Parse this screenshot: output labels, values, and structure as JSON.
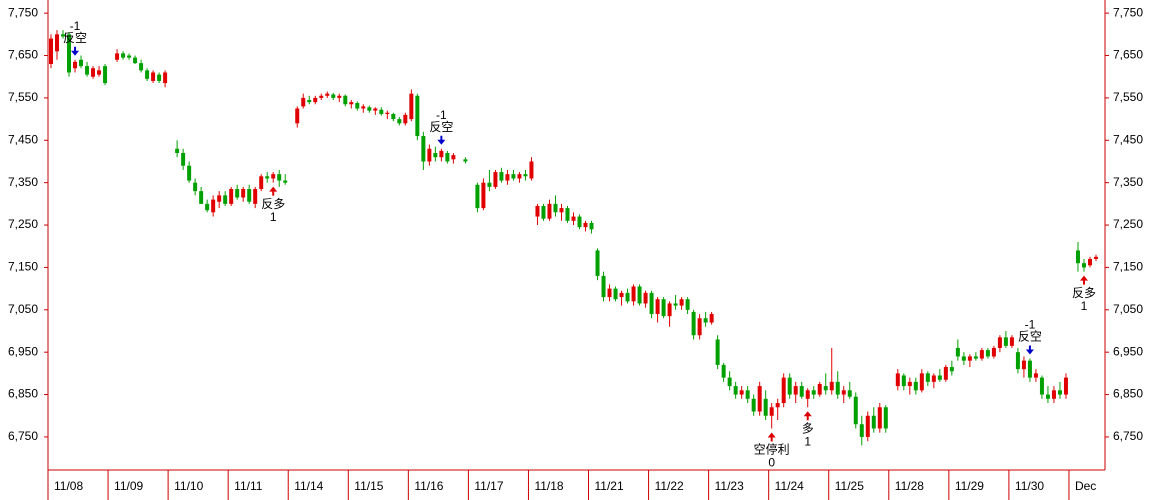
{
  "chart_data": {
    "type": "candlestick",
    "up_color": "#e00000",
    "down_color": "#00a000",
    "axis_color": "#cc0000",
    "xlim": [
      0,
      176
    ],
    "xticks": [
      {
        "value": 0,
        "label": "11/08"
      },
      {
        "value": 10,
        "label": "11/09"
      },
      {
        "value": 20,
        "label": "11/10"
      },
      {
        "value": 30,
        "label": "11/11"
      },
      {
        "value": 40,
        "label": "11/14"
      },
      {
        "value": 50,
        "label": "11/15"
      },
      {
        "value": 60,
        "label": "11/16"
      },
      {
        "value": 70,
        "label": "11/17"
      },
      {
        "value": 80,
        "label": "11/18"
      },
      {
        "value": 90,
        "label": "11/21"
      },
      {
        "value": 100,
        "label": "11/22"
      },
      {
        "value": 110,
        "label": "11/23"
      },
      {
        "value": 120,
        "label": "11/24"
      },
      {
        "value": 130,
        "label": "11/25"
      },
      {
        "value": 140,
        "label": "11/28"
      },
      {
        "value": 150,
        "label": "11/29"
      },
      {
        "value": 160,
        "label": "11/30"
      },
      {
        "value": 170,
        "label": "Dec"
      }
    ],
    "ylim": [
      6672,
      7781
    ],
    "yticks": [
      {
        "value": 6750,
        "label": "6,750"
      },
      {
        "value": 6850,
        "label": "6,850"
      },
      {
        "value": 6950,
        "label": "6,950"
      },
      {
        "value": 7050,
        "label": "7,050"
      },
      {
        "value": 7150,
        "label": "7,150"
      },
      {
        "value": 7250,
        "label": "7,250"
      },
      {
        "value": 7350,
        "label": "7,350"
      },
      {
        "value": 7450,
        "label": "7,450"
      },
      {
        "value": 7550,
        "label": "7,550"
      },
      {
        "value": 7650,
        "label": "7,650"
      },
      {
        "value": 7750,
        "label": "7,750"
      }
    ],
    "ohlc": [
      [
        7630,
        7700,
        7620,
        7690
      ],
      [
        7660,
        7710,
        7640,
        7700
      ],
      [
        7700,
        7710,
        7690,
        7695
      ],
      [
        7700,
        7705,
        7600,
        7610
      ],
      [
        7620,
        7640,
        7610,
        7635
      ],
      [
        7640,
        7650,
        7620,
        7625
      ],
      [
        7625,
        7635,
        7600,
        7605
      ],
      [
        7600,
        7625,
        7595,
        7620
      ],
      [
        7605,
        7625,
        7600,
        7615
      ],
      [
        7625,
        7630,
        7580,
        7585
      ],
      null,
      [
        7640,
        7665,
        7635,
        7655
      ],
      [
        7655,
        7660,
        7640,
        7645
      ],
      [
        7650,
        7655,
        7640,
        7645
      ],
      [
        7645,
        7650,
        7630,
        7632
      ],
      [
        7632,
        7640,
        7610,
        7615
      ],
      [
        7615,
        7620,
        7590,
        7595
      ],
      [
        7590,
        7615,
        7585,
        7610
      ],
      [
        7605,
        7610,
        7585,
        7590
      ],
      [
        7585,
        7615,
        7575,
        7610
      ],
      null,
      [
        7430,
        7450,
        7410,
        7420
      ],
      [
        7420,
        7430,
        7380,
        7390
      ],
      [
        7390,
        7400,
        7350,
        7355
      ],
      [
        7350,
        7360,
        7320,
        7330
      ],
      [
        7330,
        7340,
        7300,
        7300
      ],
      [
        7300,
        7310,
        7280,
        7285
      ],
      [
        7280,
        7320,
        7270,
        7310
      ],
      [
        7305,
        7330,
        7290,
        7320
      ],
      [
        7320,
        7330,
        7295,
        7300
      ],
      [
        7300,
        7340,
        7295,
        7335
      ],
      [
        7335,
        7345,
        7310,
        7315
      ],
      [
        7315,
        7340,
        7305,
        7335
      ],
      [
        7335,
        7345,
        7300,
        7305
      ],
      [
        7300,
        7340,
        7290,
        7335
      ],
      [
        7335,
        7370,
        7330,
        7365
      ],
      [
        7365,
        7375,
        7350,
        7360
      ],
      [
        7360,
        7375,
        7350,
        7370
      ],
      [
        7370,
        7380,
        7340,
        7355
      ],
      [
        7355,
        7370,
        7345,
        7350
      ],
      null,
      [
        7490,
        7530,
        7480,
        7525
      ],
      [
        7530,
        7560,
        7525,
        7550
      ],
      [
        7545,
        7555,
        7535,
        7540
      ],
      [
        7540,
        7555,
        7535,
        7550
      ],
      [
        7550,
        7560,
        7545,
        7555
      ],
      [
        7555,
        7565,
        7550,
        7560
      ],
      [
        7558,
        7562,
        7545,
        7550
      ],
      [
        7550,
        7560,
        7540,
        7555
      ],
      [
        7555,
        7558,
        7530,
        7535
      ],
      [
        7535,
        7545,
        7525,
        7540
      ],
      [
        7538,
        7542,
        7520,
        7525
      ],
      [
        7525,
        7535,
        7515,
        7530
      ],
      [
        7528,
        7532,
        7515,
        7520
      ],
      [
        7520,
        7528,
        7510,
        7525
      ],
      [
        7522,
        7528,
        7508,
        7512
      ],
      [
        7512,
        7520,
        7500,
        7515
      ],
      [
        7512,
        7515,
        7495,
        7500
      ],
      [
        7500,
        7505,
        7485,
        7490
      ],
      [
        7490,
        7515,
        7485,
        7510
      ],
      [
        7500,
        7570,
        7495,
        7560
      ],
      [
        7555,
        7560,
        7450,
        7460
      ],
      [
        7460,
        7470,
        7380,
        7400
      ],
      [
        7400,
        7440,
        7390,
        7430
      ],
      [
        7420,
        7435,
        7400,
        7410
      ],
      [
        7410,
        7430,
        7400,
        7425
      ],
      [
        7420,
        7425,
        7395,
        7400
      ],
      [
        7405,
        7420,
        7395,
        7415
      ],
      null,
      [
        7405,
        7410,
        7395,
        7400
      ],
      null,
      [
        7345,
        7350,
        7280,
        7290
      ],
      [
        7290,
        7360,
        7285,
        7350
      ],
      [
        7350,
        7380,
        7330,
        7340
      ],
      [
        7340,
        7380,
        7335,
        7375
      ],
      [
        7375,
        7385,
        7350,
        7355
      ],
      [
        7355,
        7380,
        7345,
        7370
      ],
      [
        7370,
        7380,
        7355,
        7360
      ],
      [
        7360,
        7375,
        7350,
        7370
      ],
      [
        7370,
        7380,
        7355,
        7365
      ],
      [
        7360,
        7410,
        7355,
        7400
      ],
      [
        7270,
        7300,
        7250,
        7295
      ],
      [
        7295,
        7300,
        7260,
        7265
      ],
      [
        7265,
        7310,
        7260,
        7300
      ],
      [
        7300,
        7320,
        7270,
        7280
      ],
      [
        7280,
        7300,
        7260,
        7290
      ],
      [
        7290,
        7295,
        7255,
        7260
      ],
      [
        7260,
        7280,
        7250,
        7270
      ],
      [
        7270,
        7275,
        7240,
        7245
      ],
      [
        7245,
        7260,
        7235,
        7255
      ],
      [
        7255,
        7260,
        7230,
        7240
      ],
      [
        7190,
        7195,
        7120,
        7130
      ],
      [
        7130,
        7140,
        7070,
        7080
      ],
      [
        7080,
        7110,
        7070,
        7100
      ],
      [
        7100,
        7105,
        7070,
        7075
      ],
      [
        7080,
        7095,
        7060,
        7090
      ],
      [
        7090,
        7100,
        7065,
        7070
      ],
      [
        7070,
        7110,
        7060,
        7105
      ],
      [
        7105,
        7110,
        7060,
        7065
      ],
      [
        7065,
        7095,
        7055,
        7090
      ],
      [
        7090,
        7095,
        7030,
        7040
      ],
      [
        7040,
        7080,
        7020,
        7075
      ],
      [
        7075,
        7080,
        7030,
        7035
      ],
      [
        7035,
        7070,
        7010,
        7065
      ],
      [
        7065,
        7085,
        7050,
        7060
      ],
      [
        7060,
        7080,
        7050,
        7075
      ],
      [
        7075,
        7080,
        7040,
        7050
      ],
      [
        7045,
        7050,
        6980,
        6990
      ],
      [
        6990,
        7040,
        6980,
        7030
      ],
      [
        7030,
        7045,
        7010,
        7020
      ],
      [
        7020,
        7045,
        7015,
        7040
      ],
      [
        6980,
        6990,
        6910,
        6920
      ],
      [
        6920,
        6925,
        6880,
        6890
      ],
      [
        6890,
        6905,
        6860,
        6870
      ],
      [
        6870,
        6880,
        6840,
        6850
      ],
      [
        6850,
        6870,
        6840,
        6860
      ],
      [
        6860,
        6870,
        6830,
        6840
      ],
      [
        6840,
        6850,
        6800,
        6810
      ],
      [
        6810,
        6880,
        6800,
        6870
      ],
      [
        6840,
        6860,
        6790,
        6800
      ],
      [
        6800,
        6830,
        6770,
        6820
      ],
      [
        6820,
        6840,
        6790,
        6830
      ],
      [
        6830,
        6900,
        6820,
        6890
      ],
      [
        6890,
        6900,
        6840,
        6850
      ],
      [
        6850,
        6880,
        6830,
        6870
      ],
      [
        6870,
        6880,
        6840,
        6845
      ],
      [
        6840,
        6865,
        6820,
        6860
      ],
      [
        6860,
        6870,
        6840,
        6850
      ],
      [
        6850,
        6880,
        6845,
        6875
      ],
      [
        6870,
        6900,
        6850,
        6860
      ],
      [
        6860,
        6960,
        6850,
        6880
      ],
      [
        6880,
        6905,
        6840,
        6850
      ],
      [
        6850,
        6870,
        6830,
        6860
      ],
      [
        6860,
        6880,
        6840,
        6845
      ],
      [
        6845,
        6855,
        6770,
        6780
      ],
      [
        6780,
        6800,
        6730,
        6750
      ],
      [
        6750,
        6810,
        6740,
        6800
      ],
      [
        6800,
        6820,
        6760,
        6770
      ],
      [
        6770,
        6830,
        6760,
        6820
      ],
      [
        6820,
        6825,
        6760,
        6770
      ],
      null,
      [
        6870,
        6910,
        6860,
        6900
      ],
      [
        6895,
        6900,
        6860,
        6870
      ],
      [
        6870,
        6890,
        6850,
        6880
      ],
      [
        6880,
        6890,
        6850,
        6860
      ],
      [
        6860,
        6910,
        6855,
        6900
      ],
      [
        6900,
        6905,
        6870,
        6880
      ],
      [
        6880,
        6900,
        6865,
        6895
      ],
      [
        6895,
        6910,
        6880,
        6885
      ],
      [
        6885,
        6920,
        6880,
        6915
      ],
      [
        6915,
        6930,
        6895,
        6905
      ],
      [
        6960,
        6980,
        6930,
        6940
      ],
      [
        6940,
        6950,
        6920,
        6930
      ],
      [
        6930,
        6945,
        6915,
        6940
      ],
      [
        6940,
        6950,
        6930,
        6935
      ],
      [
        6935,
        6960,
        6930,
        6955
      ],
      [
        6955,
        6960,
        6935,
        6940
      ],
      [
        6940,
        6965,
        6935,
        6960
      ],
      [
        6960,
        6990,
        6950,
        6985
      ],
      [
        6985,
        7000,
        6960,
        6965
      ],
      [
        6965,
        6990,
        6960,
        6985
      ],
      [
        6950,
        6960,
        6900,
        6910
      ],
      [
        6910,
        6940,
        6890,
        6930
      ],
      [
        6930,
        6935,
        6880,
        6890
      ],
      [
        6890,
        6910,
        6880,
        6900
      ],
      [
        6890,
        6895,
        6840,
        6850
      ],
      [
        6850,
        6870,
        6830,
        6840
      ],
      [
        6840,
        6870,
        6830,
        6860
      ],
      [
        6860,
        6880,
        6840,
        6850
      ],
      [
        6850,
        6900,
        6840,
        6890
      ],
      null,
      [
        7190,
        7210,
        7140,
        7160
      ],
      [
        7160,
        7170,
        7140,
        7150
      ],
      [
        7155,
        7175,
        7150,
        7170
      ],
      [
        7170,
        7180,
        7165,
        7175
      ],
      null
    ],
    "signals": [
      {
        "x": 4,
        "label": "反空",
        "count": -1,
        "arrow": "down",
        "color": "#0000cc"
      },
      {
        "x": 37,
        "label": "反多",
        "count": 1,
        "arrow": "up",
        "color": "#dd0000"
      },
      {
        "x": 65,
        "label": "反空",
        "count": -1,
        "arrow": "down",
        "color": "#0000cc"
      },
      {
        "x": 120,
        "label": "空停利",
        "count": 0,
        "arrow": "up",
        "color": "#dd0000"
      },
      {
        "x": 126,
        "label": "多",
        "count": 1,
        "arrow": "up",
        "color": "#dd0000"
      },
      {
        "x": 163,
        "label": "反空",
        "count": -1,
        "arrow": "down",
        "color": "#0000cc"
      },
      {
        "x": 172,
        "label": "反多",
        "count": 1,
        "arrow": "up",
        "color": "#dd0000"
      }
    ]
  }
}
